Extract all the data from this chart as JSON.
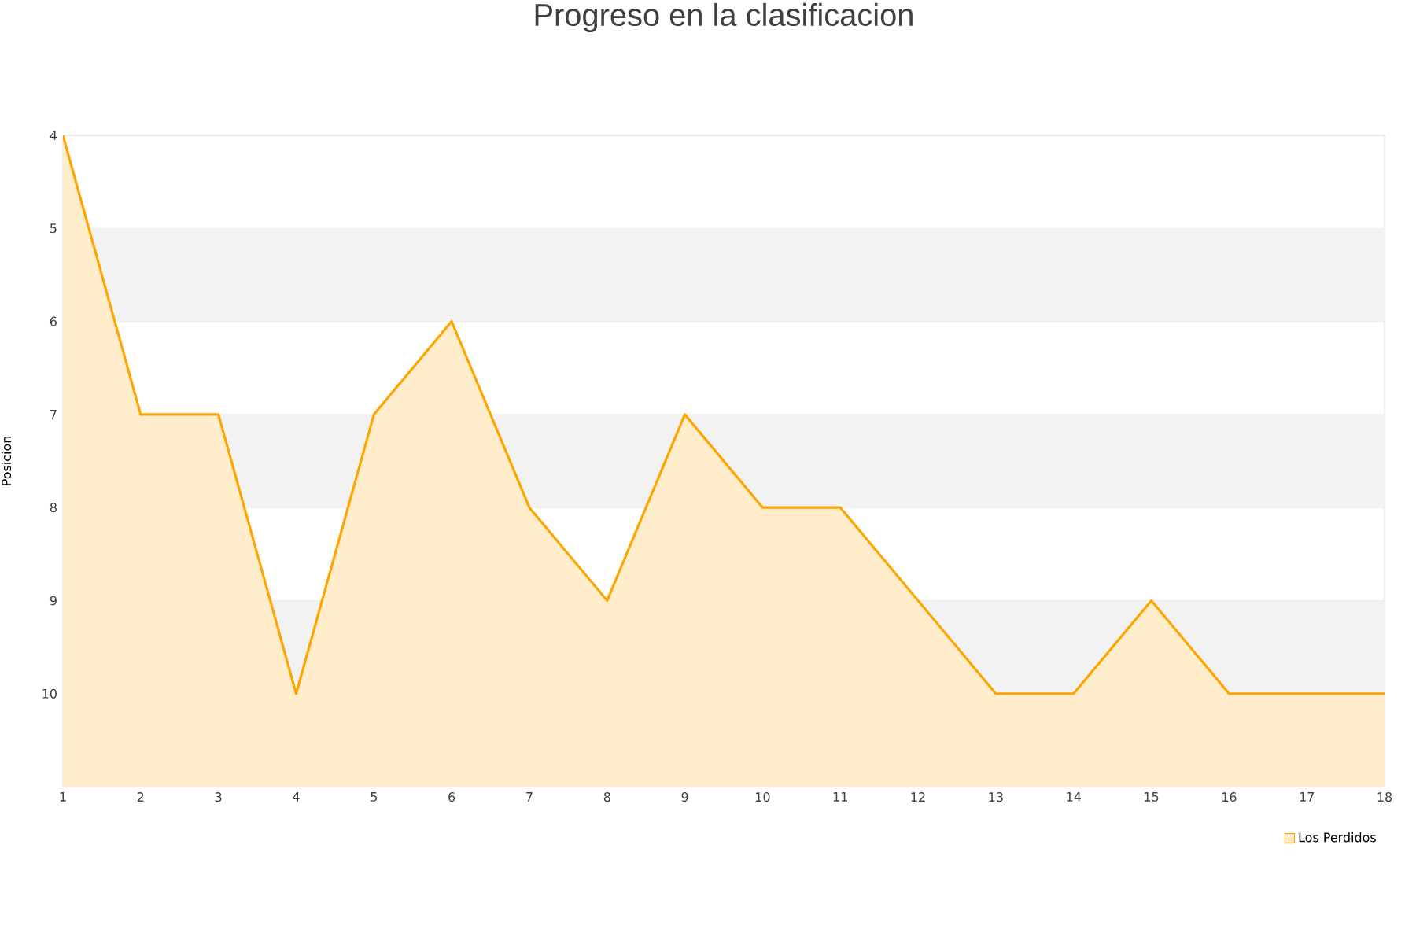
{
  "chart_data": {
    "type": "area",
    "title": "Progreso en la clasificacion",
    "ylabel": "Posicion",
    "x": [
      1,
      2,
      3,
      4,
      5,
      6,
      7,
      8,
      9,
      10,
      11,
      12,
      13,
      14,
      15,
      16,
      17,
      18
    ],
    "series": [
      {
        "name": "Los Perdidos",
        "color": "#ffa500",
        "values": [
          4,
          7,
          7,
          10,
          7,
          6,
          8,
          9,
          7,
          8,
          8,
          9,
          10,
          10,
          9,
          10,
          10,
          10
        ]
      }
    ],
    "xlim": [
      1,
      18
    ],
    "xticks": [
      1,
      2,
      3,
      4,
      5,
      6,
      7,
      8,
      9,
      10,
      11,
      12,
      13,
      14,
      15,
      16,
      17,
      18
    ],
    "ylim": [
      11,
      4
    ],
    "yticks": [
      4,
      5,
      6,
      7,
      8,
      9,
      10
    ],
    "bands": [
      {
        "axis": "y",
        "from": 5,
        "to": 6,
        "color": "#f2f2f2"
      },
      {
        "axis": "y",
        "from": 7,
        "to": 8,
        "color": "#f2f2f2"
      },
      {
        "axis": "y",
        "from": 9,
        "to": 10,
        "color": "#f2f2f2"
      }
    ],
    "grid": "y",
    "legend": "bottom right"
  }
}
